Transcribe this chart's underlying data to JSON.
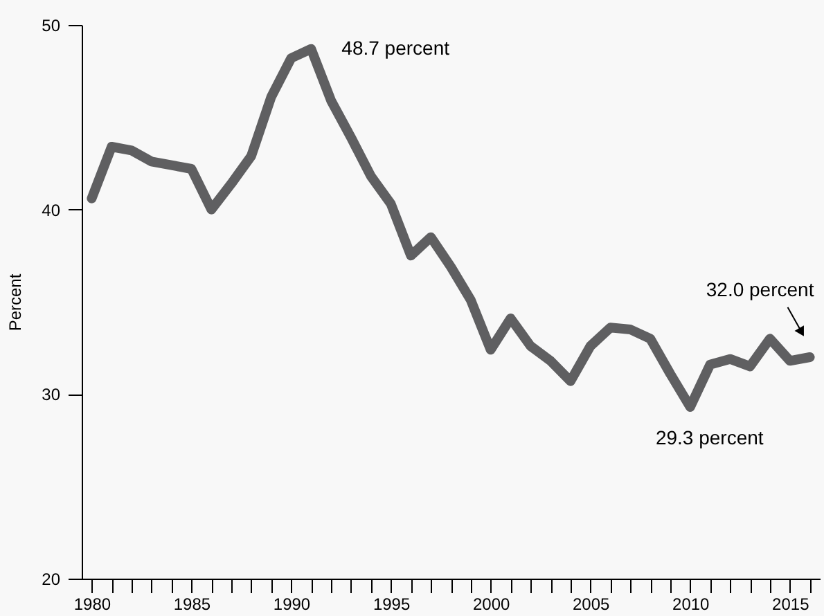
{
  "chart_data": {
    "type": "line",
    "ylabel": "Percent",
    "x": [
      1980,
      1981,
      1982,
      1983,
      1984,
      1985,
      1986,
      1987,
      1988,
      1989,
      1990,
      1991,
      1992,
      1993,
      1994,
      1995,
      1996,
      1997,
      1998,
      1999,
      2000,
      2001,
      2002,
      2003,
      2004,
      2005,
      2006,
      2007,
      2008,
      2009,
      2010,
      2011,
      2012,
      2013,
      2014,
      2015,
      2016
    ],
    "series": [
      {
        "color": "#5f5f61",
        "values": [
          40.6,
          43.4,
          43.2,
          42.6,
          42.4,
          42.2,
          40.0,
          41.4,
          42.9,
          46.1,
          48.2,
          48.7,
          45.9,
          43.9,
          41.8,
          40.3,
          37.5,
          38.5,
          36.9,
          35.1,
          32.4,
          34.1,
          32.6,
          31.8,
          30.7,
          32.6,
          33.6,
          33.5,
          33.0,
          31.1,
          29.3,
          31.6,
          31.9,
          31.5,
          33.0,
          31.8,
          32.0
        ]
      }
    ],
    "xlim": [
      1979.5,
      2016.5
    ],
    "xticks": [
      1980,
      {
        "value": 1981,
        "label": null
      },
      {
        "value": 1982,
        "label": null
      },
      {
        "value": 1983,
        "label": null
      },
      {
        "value": 1984,
        "label": null
      },
      1985,
      {
        "value": 1986,
        "label": null
      },
      {
        "value": 1987,
        "label": null
      },
      {
        "value": 1988,
        "label": null
      },
      {
        "value": 1989,
        "label": null
      },
      1990,
      {
        "value": 1991,
        "label": null
      },
      {
        "value": 1992,
        "label": null
      },
      {
        "value": 1993,
        "label": null
      },
      {
        "value": 1994,
        "label": null
      },
      1995,
      {
        "value": 1996,
        "label": null
      },
      {
        "value": 1997,
        "label": null
      },
      {
        "value": 1998,
        "label": null
      },
      {
        "value": 1999,
        "label": null
      },
      2000,
      {
        "value": 2001,
        "label": null
      },
      {
        "value": 2002,
        "label": null
      },
      {
        "value": 2003,
        "label": null
      },
      {
        "value": 2004,
        "label": null
      },
      2005,
      {
        "value": 2006,
        "label": null
      },
      {
        "value": 2007,
        "label": null
      },
      {
        "value": 2008,
        "label": null
      },
      {
        "value": 2009,
        "label": null
      },
      2010,
      {
        "value": 2011,
        "label": null
      },
      {
        "value": 2012,
        "label": null
      },
      {
        "value": 2013,
        "label": null
      },
      {
        "value": 2014,
        "label": null
      },
      2015,
      {
        "value": 2016,
        "label": null
      }
    ],
    "ylim": [
      20,
      50
    ],
    "yticks": [
      20,
      30,
      40,
      50
    ],
    "grid": false,
    "marker": "none",
    "line_style": "solid",
    "annotations": [
      {
        "text": "48.7 percent",
        "x": 1991,
        "y": 48.7
      },
      {
        "text": "29.3 percent",
        "x": 2010,
        "y": 29.3
      },
      {
        "text": "32.0 percent",
        "x": 2016,
        "y": 32.0
      }
    ]
  }
}
